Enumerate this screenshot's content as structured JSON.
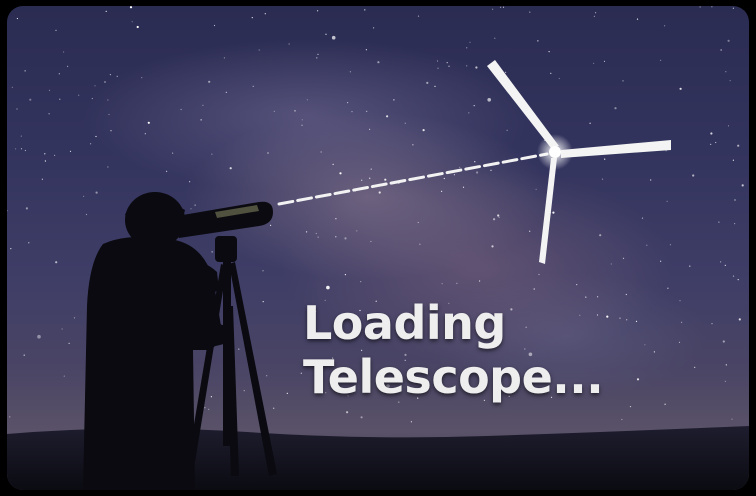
{
  "loading": {
    "line1": "Loading",
    "line2": "Telescope..."
  },
  "colors": {
    "background": "#000000",
    "sky_top": "#2b2c52",
    "sky_mid": "#3e3d66",
    "horizon": "#5a5268",
    "text": "#eeeeee",
    "spinner": "#ffffff"
  },
  "icons": {
    "spinner": "pinwheel-spinner-icon",
    "observer": "person-with-telescope-silhouette"
  }
}
